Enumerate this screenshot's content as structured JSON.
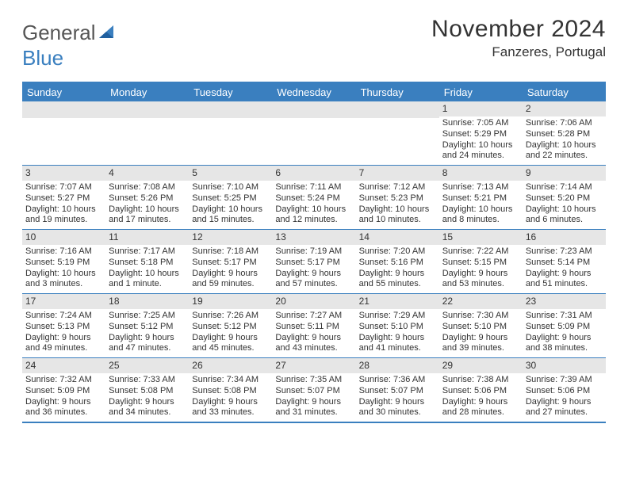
{
  "header": {
    "logo_left": "General",
    "logo_right": "Blue",
    "month_title": "November 2024",
    "location": "Fanzeres, Portugal"
  },
  "colors": {
    "accent": "#3a7fbf",
    "day_bar": "#e6e6e6",
    "text": "#333333",
    "bg": "#ffffff"
  },
  "dow": [
    "Sunday",
    "Monday",
    "Tuesday",
    "Wednesday",
    "Thursday",
    "Friday",
    "Saturday"
  ],
  "weeks": [
    [
      {
        "n": "",
        "sr": "",
        "ss": "",
        "dl": ""
      },
      {
        "n": "",
        "sr": "",
        "ss": "",
        "dl": ""
      },
      {
        "n": "",
        "sr": "",
        "ss": "",
        "dl": ""
      },
      {
        "n": "",
        "sr": "",
        "ss": "",
        "dl": ""
      },
      {
        "n": "",
        "sr": "",
        "ss": "",
        "dl": ""
      },
      {
        "n": "1",
        "sr": "Sunrise: 7:05 AM",
        "ss": "Sunset: 5:29 PM",
        "dl": "Daylight: 10 hours and 24 minutes."
      },
      {
        "n": "2",
        "sr": "Sunrise: 7:06 AM",
        "ss": "Sunset: 5:28 PM",
        "dl": "Daylight: 10 hours and 22 minutes."
      }
    ],
    [
      {
        "n": "3",
        "sr": "Sunrise: 7:07 AM",
        "ss": "Sunset: 5:27 PM",
        "dl": "Daylight: 10 hours and 19 minutes."
      },
      {
        "n": "4",
        "sr": "Sunrise: 7:08 AM",
        "ss": "Sunset: 5:26 PM",
        "dl": "Daylight: 10 hours and 17 minutes."
      },
      {
        "n": "5",
        "sr": "Sunrise: 7:10 AM",
        "ss": "Sunset: 5:25 PM",
        "dl": "Daylight: 10 hours and 15 minutes."
      },
      {
        "n": "6",
        "sr": "Sunrise: 7:11 AM",
        "ss": "Sunset: 5:24 PM",
        "dl": "Daylight: 10 hours and 12 minutes."
      },
      {
        "n": "7",
        "sr": "Sunrise: 7:12 AM",
        "ss": "Sunset: 5:23 PM",
        "dl": "Daylight: 10 hours and 10 minutes."
      },
      {
        "n": "8",
        "sr": "Sunrise: 7:13 AM",
        "ss": "Sunset: 5:21 PM",
        "dl": "Daylight: 10 hours and 8 minutes."
      },
      {
        "n": "9",
        "sr": "Sunrise: 7:14 AM",
        "ss": "Sunset: 5:20 PM",
        "dl": "Daylight: 10 hours and 6 minutes."
      }
    ],
    [
      {
        "n": "10",
        "sr": "Sunrise: 7:16 AM",
        "ss": "Sunset: 5:19 PM",
        "dl": "Daylight: 10 hours and 3 minutes."
      },
      {
        "n": "11",
        "sr": "Sunrise: 7:17 AM",
        "ss": "Sunset: 5:18 PM",
        "dl": "Daylight: 10 hours and 1 minute."
      },
      {
        "n": "12",
        "sr": "Sunrise: 7:18 AM",
        "ss": "Sunset: 5:17 PM",
        "dl": "Daylight: 9 hours and 59 minutes."
      },
      {
        "n": "13",
        "sr": "Sunrise: 7:19 AM",
        "ss": "Sunset: 5:17 PM",
        "dl": "Daylight: 9 hours and 57 minutes."
      },
      {
        "n": "14",
        "sr": "Sunrise: 7:20 AM",
        "ss": "Sunset: 5:16 PM",
        "dl": "Daylight: 9 hours and 55 minutes."
      },
      {
        "n": "15",
        "sr": "Sunrise: 7:22 AM",
        "ss": "Sunset: 5:15 PM",
        "dl": "Daylight: 9 hours and 53 minutes."
      },
      {
        "n": "16",
        "sr": "Sunrise: 7:23 AM",
        "ss": "Sunset: 5:14 PM",
        "dl": "Daylight: 9 hours and 51 minutes."
      }
    ],
    [
      {
        "n": "17",
        "sr": "Sunrise: 7:24 AM",
        "ss": "Sunset: 5:13 PM",
        "dl": "Daylight: 9 hours and 49 minutes."
      },
      {
        "n": "18",
        "sr": "Sunrise: 7:25 AM",
        "ss": "Sunset: 5:12 PM",
        "dl": "Daylight: 9 hours and 47 minutes."
      },
      {
        "n": "19",
        "sr": "Sunrise: 7:26 AM",
        "ss": "Sunset: 5:12 PM",
        "dl": "Daylight: 9 hours and 45 minutes."
      },
      {
        "n": "20",
        "sr": "Sunrise: 7:27 AM",
        "ss": "Sunset: 5:11 PM",
        "dl": "Daylight: 9 hours and 43 minutes."
      },
      {
        "n": "21",
        "sr": "Sunrise: 7:29 AM",
        "ss": "Sunset: 5:10 PM",
        "dl": "Daylight: 9 hours and 41 minutes."
      },
      {
        "n": "22",
        "sr": "Sunrise: 7:30 AM",
        "ss": "Sunset: 5:10 PM",
        "dl": "Daylight: 9 hours and 39 minutes."
      },
      {
        "n": "23",
        "sr": "Sunrise: 7:31 AM",
        "ss": "Sunset: 5:09 PM",
        "dl": "Daylight: 9 hours and 38 minutes."
      }
    ],
    [
      {
        "n": "24",
        "sr": "Sunrise: 7:32 AM",
        "ss": "Sunset: 5:09 PM",
        "dl": "Daylight: 9 hours and 36 minutes."
      },
      {
        "n": "25",
        "sr": "Sunrise: 7:33 AM",
        "ss": "Sunset: 5:08 PM",
        "dl": "Daylight: 9 hours and 34 minutes."
      },
      {
        "n": "26",
        "sr": "Sunrise: 7:34 AM",
        "ss": "Sunset: 5:08 PM",
        "dl": "Daylight: 9 hours and 33 minutes."
      },
      {
        "n": "27",
        "sr": "Sunrise: 7:35 AM",
        "ss": "Sunset: 5:07 PM",
        "dl": "Daylight: 9 hours and 31 minutes."
      },
      {
        "n": "28",
        "sr": "Sunrise: 7:36 AM",
        "ss": "Sunset: 5:07 PM",
        "dl": "Daylight: 9 hours and 30 minutes."
      },
      {
        "n": "29",
        "sr": "Sunrise: 7:38 AM",
        "ss": "Sunset: 5:06 PM",
        "dl": "Daylight: 9 hours and 28 minutes."
      },
      {
        "n": "30",
        "sr": "Sunrise: 7:39 AM",
        "ss": "Sunset: 5:06 PM",
        "dl": "Daylight: 9 hours and 27 minutes."
      }
    ]
  ]
}
